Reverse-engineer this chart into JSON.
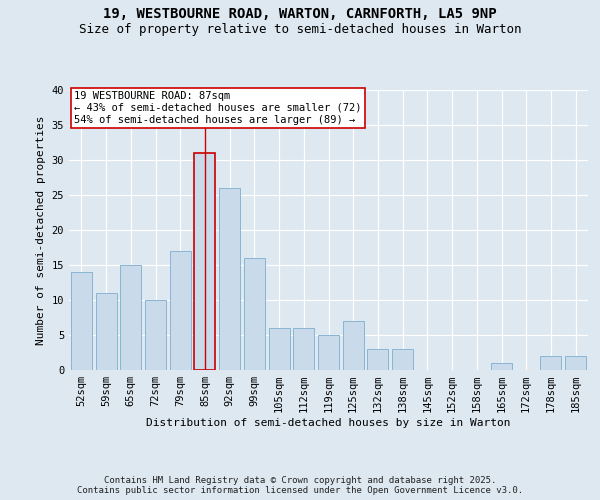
{
  "title_line1": "19, WESTBOURNE ROAD, WARTON, CARNFORTH, LA5 9NP",
  "title_line2": "Size of property relative to semi-detached houses in Warton",
  "xlabel": "Distribution of semi-detached houses by size in Warton",
  "ylabel": "Number of semi-detached properties",
  "categories": [
    "52sqm",
    "59sqm",
    "65sqm",
    "72sqm",
    "79sqm",
    "85sqm",
    "92sqm",
    "99sqm",
    "105sqm",
    "112sqm",
    "119sqm",
    "125sqm",
    "132sqm",
    "138sqm",
    "145sqm",
    "152sqm",
    "158sqm",
    "165sqm",
    "172sqm",
    "178sqm",
    "185sqm"
  ],
  "values": [
    14,
    11,
    15,
    10,
    17,
    31,
    26,
    16,
    6,
    6,
    5,
    7,
    3,
    3,
    0,
    0,
    0,
    1,
    0,
    2,
    2
  ],
  "bar_color": "#c9daea",
  "bar_edge_color": "#8ab4d4",
  "highlight_bar_index": 5,
  "highlight_bar_edge_color": "#cc0000",
  "vline_color": "#cc0000",
  "annotation_title": "19 WESTBOURNE ROAD: 87sqm",
  "annotation_line1": "← 43% of semi-detached houses are smaller (72)",
  "annotation_line2": "54% of semi-detached houses are larger (89) →",
  "annotation_box_facecolor": "#ffffff",
  "annotation_box_edgecolor": "#cc0000",
  "footer_line1": "Contains HM Land Registry data © Crown copyright and database right 2025.",
  "footer_line2": "Contains public sector information licensed under the Open Government Licence v3.0.",
  "ylim": [
    0,
    40
  ],
  "yticks": [
    0,
    5,
    10,
    15,
    20,
    25,
    30,
    35,
    40
  ],
  "bg_color": "#dde8f0",
  "plot_bg_color": "#dde8f0",
  "grid_color": "#ffffff",
  "title_fontsize": 10,
  "subtitle_fontsize": 9,
  "axis_label_fontsize": 8,
  "tick_fontsize": 7.5,
  "annotation_fontsize": 7.5,
  "footer_fontsize": 6.5
}
